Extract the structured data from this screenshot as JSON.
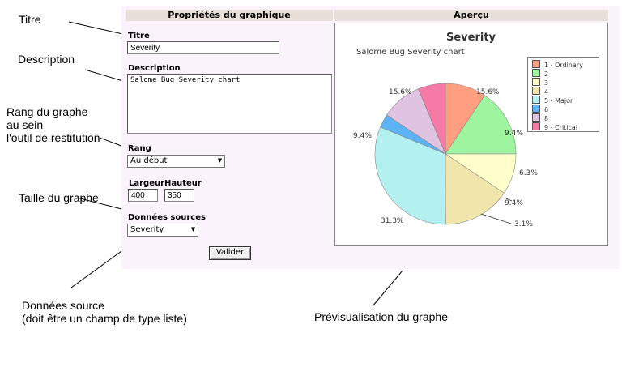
{
  "annotations": {
    "titre": "Titre",
    "description": "Description",
    "rang": "Rang du graphe\nau sein\nl'outil de restitution",
    "taille": "Taille du graphe",
    "donnees": "Données source\n(doit être un champ de type liste)",
    "previsualisation": "Prévisualisation du graphe"
  },
  "form": {
    "header": "Propriétés du graphique",
    "title_label": "Titre",
    "title_value": "Severity",
    "description_label": "Description",
    "description_value": "Salome Bug Severity chart",
    "rank_label": "Rang",
    "rank_value": "Au début",
    "width_label": "Largeur",
    "height_label": "Hauteur",
    "width_value": "400",
    "height_value": "350",
    "source_label": "Données sources",
    "source_value": "Severity",
    "submit_label": "Valider"
  },
  "preview": {
    "header": "Aperçu"
  },
  "chart_data": {
    "type": "pie",
    "title": "Severity",
    "subtitle": "Salome Bug Severity chart",
    "legend_position": "top-right",
    "series": [
      {
        "name": "1 - Ordinary",
        "value": 9.4,
        "label": "9.4%",
        "color": "#ff9f80"
      },
      {
        "name": "2",
        "value": 15.6,
        "label": "15.6%",
        "color": "#9ff59f"
      },
      {
        "name": "3",
        "value": 9.4,
        "label": "9.4%",
        "color": "#ffffcc"
      },
      {
        "name": "4",
        "value": 15.6,
        "label": "15.6%",
        "color": "#f0e6ac"
      },
      {
        "name": "5 - Major",
        "value": 31.3,
        "label": "31.3%",
        "color": "#b3f0f0"
      },
      {
        "name": "6",
        "value": 3.1,
        "label": "3.1%",
        "color": "#5cb4f5"
      },
      {
        "name": "8",
        "value": 9.4,
        "label": "9.4%",
        "color": "#e0c3e0"
      },
      {
        "name": "9 - Critical",
        "value": 6.3,
        "label": "6.3%",
        "color": "#f57aa5"
      }
    ]
  }
}
